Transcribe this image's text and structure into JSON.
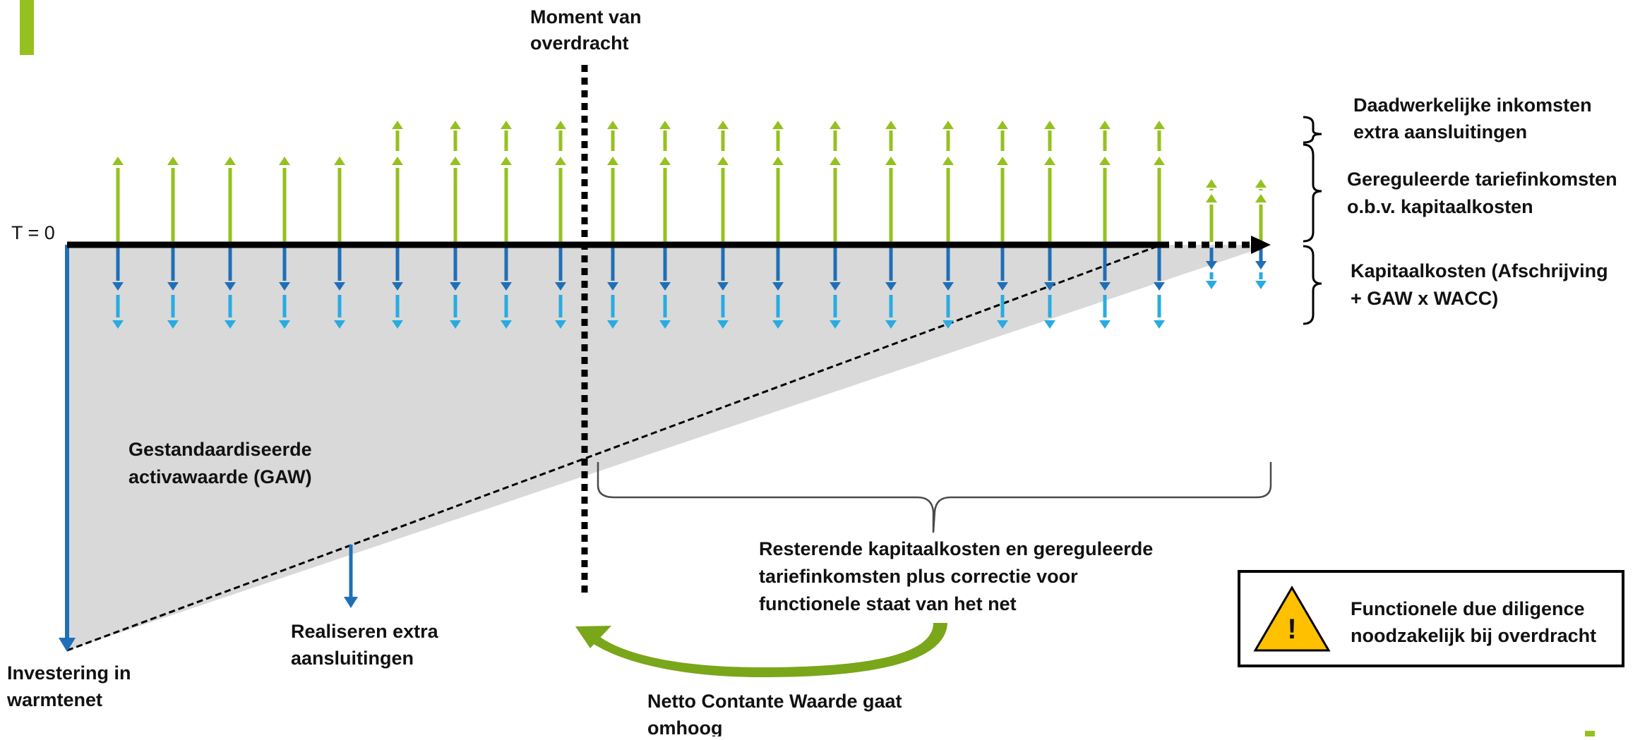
{
  "colors": {
    "green": "#95c11f",
    "dark_blue": "#1f6fb8",
    "light_blue": "#29abe2",
    "gray_fill": "#d9d9d9",
    "axis": "#000000",
    "warning": "#ffc000",
    "curved_arrow": "#7aa61a"
  },
  "labels": {
    "t0": "T = 0",
    "moment_line1": "Moment van",
    "moment_line2": "overdracht",
    "legend_actual_line1": "Daadwerkelijke inkomsten",
    "legend_actual_line2": "extra aansluitingen",
    "legend_regulated_line1": "Gereguleerde tariefinkomsten",
    "legend_regulated_line2": "o.b.v. kapitaalkosten",
    "legend_capital_line1": "Kapitaalkosten (Afschrijving",
    "legend_capital_line2": "+ GAW x WACC)",
    "gaw_line1": "Gestandaardiseerde",
    "gaw_line2": "activawaarde (GAW)",
    "investment_line1": "Investering in",
    "investment_line2": "warmtenet",
    "extra_line1": "Realiseren extra",
    "extra_line2": "aansluitingen",
    "remaining_line1": "Resterende kapitaalkosten en gereguleerde",
    "remaining_line2": "tariefinkomsten plus correctie voor",
    "remaining_line3": "functionele staat van het net",
    "npv_line1": "Netto Contante Waarde gaat",
    "npv_line2": "omhoog",
    "warning_line1": "Functionele due diligence",
    "warning_line2": "noodzakelijk bij overdracht",
    "warning_symbol": "!"
  },
  "icons": {
    "warning": "warning-triangle-icon",
    "curved_arrow": "curved-arrow-icon",
    "brace": "curly-brace-icon"
  }
}
